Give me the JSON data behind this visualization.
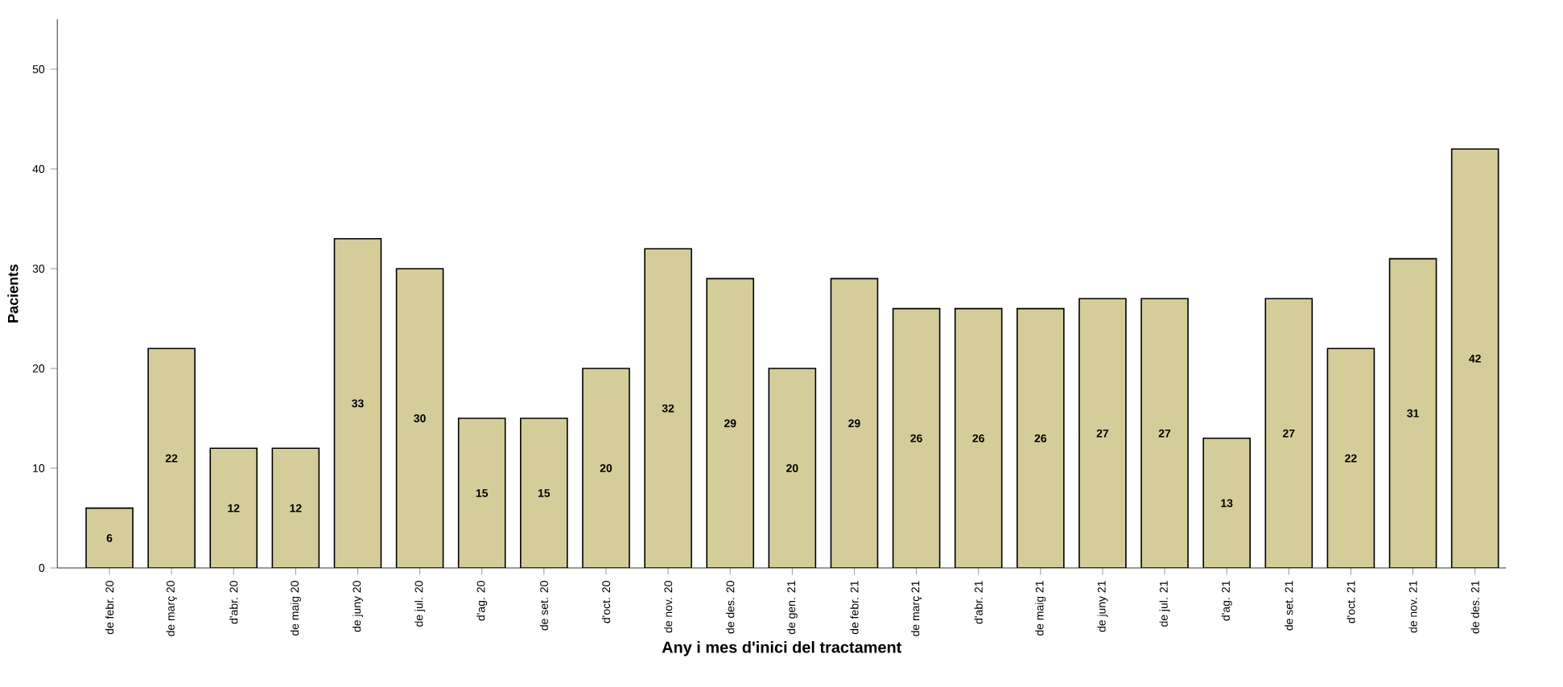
{
  "chart_data": {
    "type": "bar",
    "xlabel": "Any i mes d'inici del tractament",
    "ylabel": "Pacients",
    "categories": [
      "de febr. 20",
      "de març 20",
      "d'abr. 20",
      "de maig 20",
      "de juny 20",
      "de jul. 20",
      "d'ag. 20",
      "de set. 20",
      "d'oct. 20",
      "de nov. 20",
      "de des. 20",
      "de gen. 21",
      "de febr. 21",
      "de març 21",
      "d'abr. 21",
      "de maig 21",
      "de juny 21",
      "de jul. 21",
      "d'ag. 21",
      "de set. 21",
      "d'oct. 21",
      "de nov. 21",
      "de des. 21"
    ],
    "values": [
      6,
      22,
      12,
      12,
      33,
      30,
      15,
      15,
      20,
      32,
      29,
      20,
      29,
      26,
      26,
      26,
      27,
      27,
      13,
      27,
      22,
      31,
      42
    ],
    "color": "#d4cd9a",
    "ylim": [
      0,
      55
    ],
    "yticks": [
      0,
      10,
      20,
      30,
      40,
      50
    ],
    "data_labels": true
  }
}
